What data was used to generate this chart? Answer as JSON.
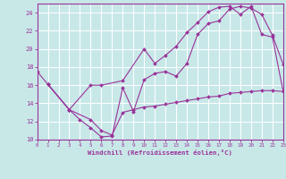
{
  "background_color": "#c8e8e8",
  "grid_color": "#ffffff",
  "line_color": "#993399",
  "marker_color": "#993399",
  "xlabel": "Windchill (Refroidissement éolien,°C)",
  "xlim": [
    0,
    23
  ],
  "ylim": [
    10,
    25
  ],
  "yticks": [
    10,
    12,
    14,
    16,
    18,
    20,
    22,
    24
  ],
  "xticks": [
    0,
    1,
    2,
    3,
    4,
    5,
    6,
    7,
    8,
    9,
    10,
    11,
    12,
    13,
    14,
    15,
    16,
    17,
    18,
    19,
    20,
    21,
    22,
    23
  ],
  "curve1_x": [
    0,
    1,
    3,
    4,
    5,
    6,
    7,
    8,
    9,
    10,
    11,
    12,
    13,
    14,
    15,
    16,
    17,
    18,
    19,
    20,
    21,
    22,
    23
  ],
  "curve1_y": [
    17.5,
    16.1,
    13.3,
    12.2,
    11.3,
    10.3,
    10.4,
    15.7,
    13.1,
    16.6,
    17.3,
    17.5,
    17.0,
    18.4,
    21.6,
    22.8,
    23.1,
    24.4,
    24.7,
    24.5,
    23.8,
    21.5,
    18.3
  ],
  "curve2_x": [
    1,
    3,
    5,
    6,
    8,
    10,
    11,
    12,
    13,
    14,
    15,
    16,
    17,
    18,
    19,
    20,
    21,
    22,
    23
  ],
  "curve2_y": [
    16.1,
    13.3,
    16.0,
    16.0,
    16.5,
    20.0,
    18.4,
    19.3,
    20.3,
    21.8,
    22.9,
    24.1,
    24.6,
    24.7,
    23.8,
    24.7,
    21.6,
    21.3,
    15.3
  ],
  "curve3_x": [
    1,
    3,
    5,
    6,
    7,
    8,
    9,
    10,
    11,
    12,
    13,
    14,
    15,
    16,
    17,
    18,
    19,
    20,
    21,
    22,
    23
  ],
  "curve3_y": [
    16.1,
    13.3,
    12.2,
    11.0,
    10.5,
    13.0,
    13.3,
    13.6,
    13.7,
    13.9,
    14.1,
    14.3,
    14.5,
    14.7,
    14.8,
    15.1,
    15.2,
    15.3,
    15.4,
    15.4,
    15.3
  ]
}
